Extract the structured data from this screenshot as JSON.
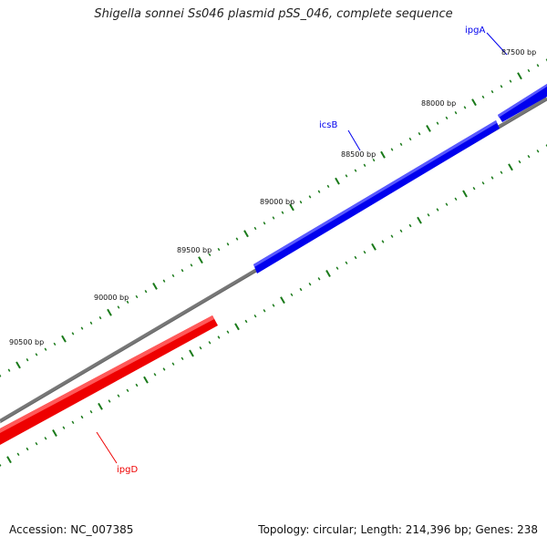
{
  "title": "Shigella sonnei Ss046 plasmid pSS_046, complete sequence",
  "footer": {
    "accession": "Accession: NC_007385",
    "summary": "Topology: circular; Length: 214,396 bp; Genes: 238"
  },
  "colors": {
    "forward_gene": "#0000ee",
    "reverse_gene": "#ee0000",
    "backbone": "#777777",
    "tick": "#1a7a1a"
  },
  "ticks": [
    "87500 bp",
    "88000 bp",
    "88500 bp",
    "89000 bp",
    "89500 bp",
    "90000 bp",
    "90500 bp"
  ],
  "genes": [
    {
      "name": "ipgA",
      "strand": "forward"
    },
    {
      "name": "icsB",
      "strand": "forward"
    },
    {
      "name": "ipgD",
      "strand": "reverse"
    }
  ]
}
